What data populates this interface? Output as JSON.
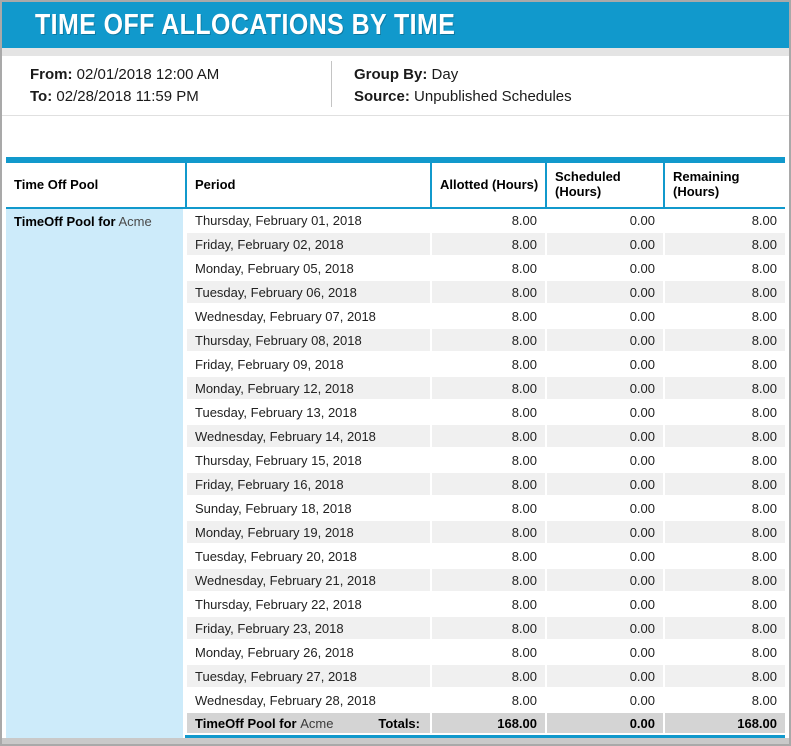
{
  "title": "TIME OFF ALLOCATIONS BY TIME",
  "filters": {
    "from": {
      "label": "From:",
      "value": "02/01/2018 12:00 AM"
    },
    "to": {
      "label": "To:",
      "value": "02/28/2018 11:59 PM"
    },
    "group_by": {
      "label": "Group By:",
      "value": "Day"
    },
    "source": {
      "label": "Source:",
      "value": "Unpublished Schedules"
    }
  },
  "table": {
    "headers": {
      "pool": "Time Off Pool",
      "period": "Period",
      "allotted": "Allotted (Hours)",
      "scheduled": "Scheduled (Hours)",
      "remaining": "Remaining (Hours)"
    },
    "pool": {
      "bold": "TimeOff Pool for",
      "name": "Acme"
    },
    "rows": [
      {
        "period": "Thursday, February 01, 2018",
        "allotted": "8.00",
        "scheduled": "0.00",
        "remaining": "8.00"
      },
      {
        "period": "Friday, February 02, 2018",
        "allotted": "8.00",
        "scheduled": "0.00",
        "remaining": "8.00"
      },
      {
        "period": "Monday, February 05, 2018",
        "allotted": "8.00",
        "scheduled": "0.00",
        "remaining": "8.00"
      },
      {
        "period": "Tuesday, February 06, 2018",
        "allotted": "8.00",
        "scheduled": "0.00",
        "remaining": "8.00"
      },
      {
        "period": "Wednesday, February 07, 2018",
        "allotted": "8.00",
        "scheduled": "0.00",
        "remaining": "8.00"
      },
      {
        "period": "Thursday, February 08, 2018",
        "allotted": "8.00",
        "scheduled": "0.00",
        "remaining": "8.00"
      },
      {
        "period": "Friday, February 09, 2018",
        "allotted": "8.00",
        "scheduled": "0.00",
        "remaining": "8.00"
      },
      {
        "period": "Monday, February 12, 2018",
        "allotted": "8.00",
        "scheduled": "0.00",
        "remaining": "8.00"
      },
      {
        "period": "Tuesday, February 13, 2018",
        "allotted": "8.00",
        "scheduled": "0.00",
        "remaining": "8.00"
      },
      {
        "period": "Wednesday, February 14, 2018",
        "allotted": "8.00",
        "scheduled": "0.00",
        "remaining": "8.00"
      },
      {
        "period": "Thursday, February 15, 2018",
        "allotted": "8.00",
        "scheduled": "0.00",
        "remaining": "8.00"
      },
      {
        "period": "Friday, February 16, 2018",
        "allotted": "8.00",
        "scheduled": "0.00",
        "remaining": "8.00"
      },
      {
        "period": "Sunday, February 18, 2018",
        "allotted": "8.00",
        "scheduled": "0.00",
        "remaining": "8.00"
      },
      {
        "period": "Monday, February 19, 2018",
        "allotted": "8.00",
        "scheduled": "0.00",
        "remaining": "8.00"
      },
      {
        "period": "Tuesday, February 20, 2018",
        "allotted": "8.00",
        "scheduled": "0.00",
        "remaining": "8.00"
      },
      {
        "period": "Wednesday, February 21, 2018",
        "allotted": "8.00",
        "scheduled": "0.00",
        "remaining": "8.00"
      },
      {
        "period": "Thursday, February 22, 2018",
        "allotted": "8.00",
        "scheduled": "0.00",
        "remaining": "8.00"
      },
      {
        "period": "Friday, February 23, 2018",
        "allotted": "8.00",
        "scheduled": "0.00",
        "remaining": "8.00"
      },
      {
        "period": "Monday, February 26, 2018",
        "allotted": "8.00",
        "scheduled": "0.00",
        "remaining": "8.00"
      },
      {
        "period": "Tuesday, February 27, 2018",
        "allotted": "8.00",
        "scheduled": "0.00",
        "remaining": "8.00"
      },
      {
        "period": "Wednesday, February 28, 2018",
        "allotted": "8.00",
        "scheduled": "0.00",
        "remaining": "8.00"
      }
    ],
    "totals": {
      "pool_bold": "TimeOff Pool for",
      "pool_name": "Acme",
      "label": "Totals:",
      "allotted": "168.00",
      "scheduled": "0.00",
      "remaining": "168.00"
    }
  },
  "colors": {
    "accent": "#1199CC",
    "pool_column_bg": "#CDEBFA",
    "stripe_bg": "#F0F0F0",
    "totals_bg": "#D4D4D4",
    "outer_border": "#A9A9A9"
  }
}
